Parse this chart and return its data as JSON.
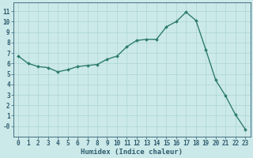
{
  "x": [
    0,
    1,
    2,
    3,
    4,
    5,
    6,
    7,
    8,
    9,
    10,
    11,
    12,
    13,
    14,
    15,
    16,
    17,
    18,
    19,
    20,
    21,
    22,
    23
  ],
  "y": [
    6.7,
    6.0,
    5.7,
    5.6,
    5.2,
    5.4,
    5.7,
    5.8,
    5.9,
    6.4,
    6.7,
    7.6,
    8.2,
    8.3,
    8.3,
    9.5,
    10.0,
    10.9,
    10.1,
    7.3,
    4.4,
    2.9,
    1.1,
    -0.3
  ],
  "line_color": "#2e7d6e",
  "marker": "D",
  "markersize": 2.0,
  "linewidth": 1.0,
  "bg_color": "#cce9e9",
  "grid_color": "#aad4d4",
  "xlabel": "Humidex (Indice chaleur)",
  "xlim": [
    -0.5,
    23.5
  ],
  "ylim": [
    -1.0,
    11.8
  ],
  "yticks": [
    0,
    1,
    2,
    3,
    4,
    5,
    6,
    7,
    8,
    9,
    10,
    11
  ],
  "ytick_labels": [
    "-0",
    "1",
    "2",
    "3",
    "4",
    "5",
    "6",
    "7",
    "8",
    "9",
    "10",
    "11"
  ],
  "xticks": [
    0,
    1,
    2,
    3,
    4,
    5,
    6,
    7,
    8,
    9,
    10,
    11,
    12,
    13,
    14,
    15,
    16,
    17,
    18,
    19,
    20,
    21,
    22,
    23
  ],
  "xtick_labels": [
    "0",
    "1",
    "2",
    "3",
    "4",
    "5",
    "6",
    "7",
    "8",
    "9",
    "10",
    "11",
    "12",
    "13",
    "14",
    "15",
    "16",
    "17",
    "18",
    "19",
    "20",
    "21",
    "22",
    "23"
  ],
  "font_color": "#2e5c6e",
  "tick_fontsize": 5.5,
  "xlabel_fontsize": 6.5
}
